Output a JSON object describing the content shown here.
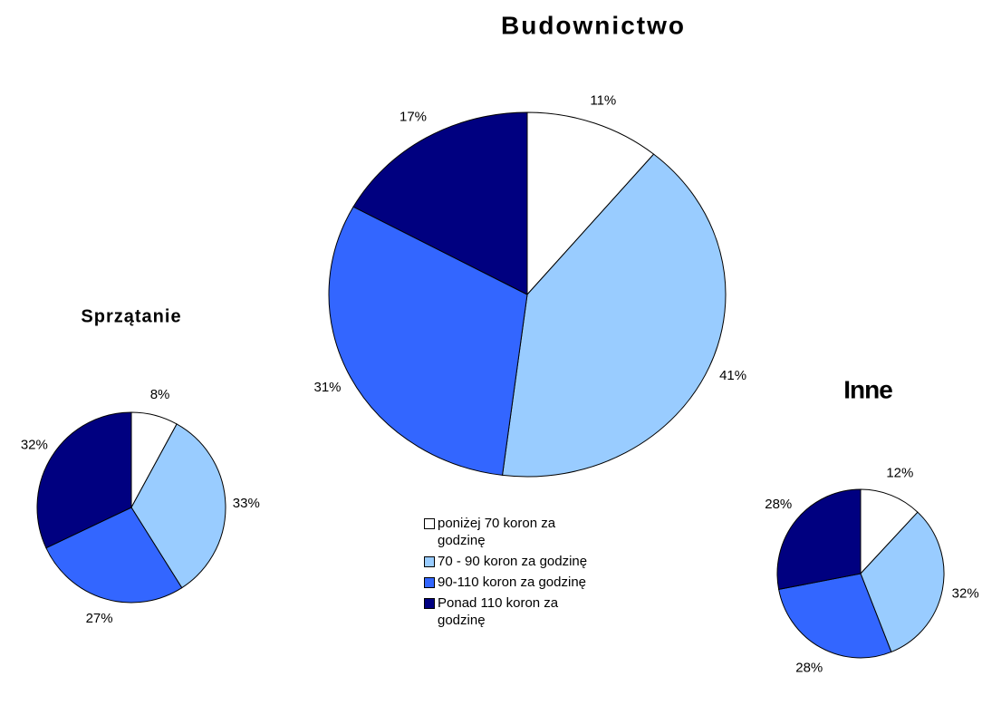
{
  "chart_data": [
    {
      "type": "pie",
      "title": "Budownictwo",
      "categories": [
        "poniżej 70 koron za godzinę",
        "70 - 90 koron za godzinę",
        "90-110 koron za godzinę",
        "Ponad 110 koron za godzinę"
      ],
      "colors": [
        "#ffffff",
        "#99ccff",
        "#3366ff",
        "#000080"
      ],
      "values": [
        11,
        41,
        31,
        17
      ],
      "value_labels": [
        "11%",
        "41%",
        "31%",
        "17%"
      ]
    },
    {
      "type": "pie",
      "title": "Sprzątanie",
      "values": [
        8,
        33,
        27,
        32
      ],
      "value_labels": [
        "8%",
        "33%",
        "27%",
        "32%"
      ]
    },
    {
      "type": "pie",
      "title": "Inne",
      "values": [
        12,
        32,
        28,
        28
      ],
      "value_labels": [
        "12%",
        "32%",
        "28%",
        "28%"
      ]
    }
  ]
}
